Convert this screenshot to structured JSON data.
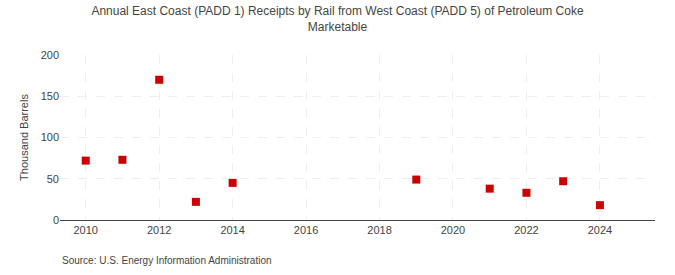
{
  "chart_data": {
    "type": "scatter",
    "title": "Annual East Coast (PADD 1) Receipts by Rail from West Coast (PADD 5) of Petroleum Coke\nMarketable",
    "ylabel": "Thousand Barrels",
    "source": "Source: U.S. Energy Information Administration",
    "x": [
      2010,
      2011,
      2012,
      2013,
      2014,
      2019,
      2021,
      2022,
      2023,
      2024
    ],
    "values": [
      72,
      73,
      170,
      22,
      45,
      49,
      38,
      33,
      47,
      18
    ],
    "color": "#cc0000",
    "marker": "square",
    "xlim": [
      2009.3,
      2025.5
    ],
    "xticks": [
      2010,
      2012,
      2014,
      2016,
      2018,
      2020,
      2022,
      2024
    ],
    "ylim": [
      0,
      200
    ],
    "yticks": [
      0,
      50,
      100,
      150,
      200
    ],
    "grid": true
  }
}
